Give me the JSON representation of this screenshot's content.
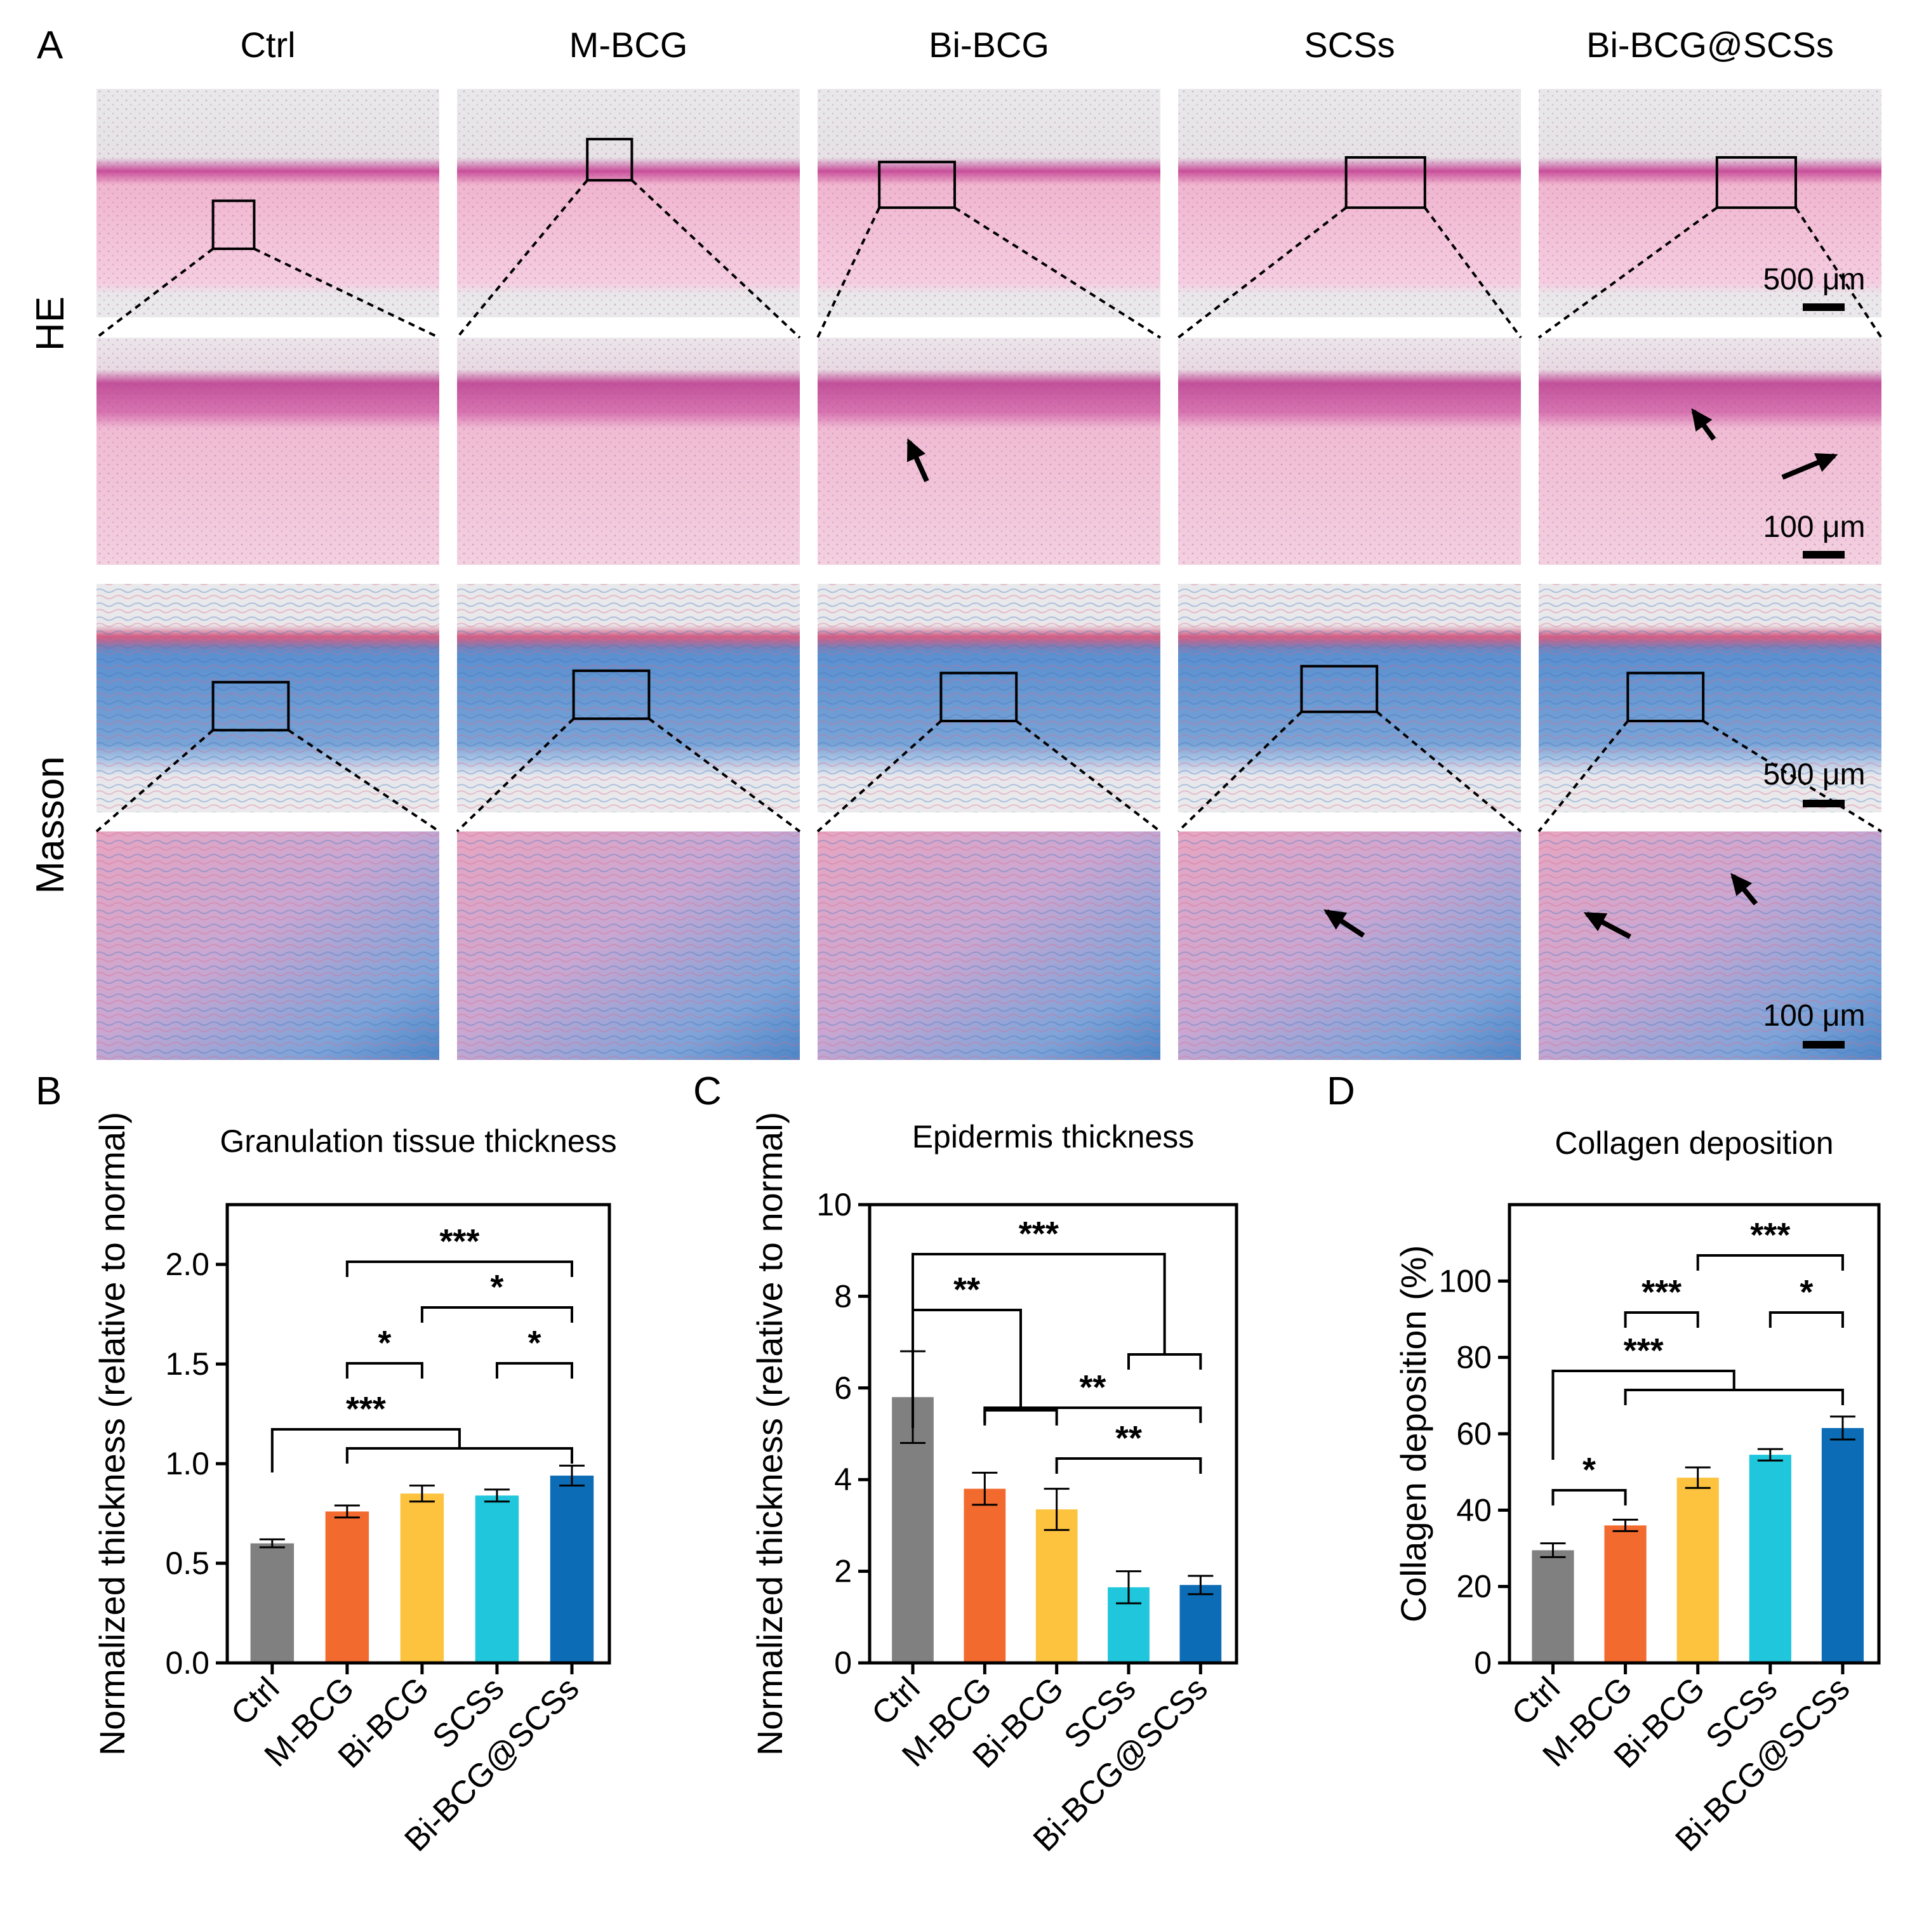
{
  "panel_a": {
    "letter": "A",
    "groups": [
      "Ctrl",
      "M-BCG",
      "Bi-BCG",
      "SCSs",
      "Bi-BCG@SCSs"
    ],
    "row_labels": {
      "he": "HE",
      "masson": "Masson"
    },
    "scale_bars": {
      "low_mag": "500 μm",
      "high_mag": "100 μm"
    },
    "colors": {
      "he_tissue": "#f2b8cf",
      "he_epidermis": "#c94f9a",
      "masson_collagen": "#4f86c6",
      "masson_muscle": "#d86a8c"
    }
  },
  "chart_data": [
    {
      "letter": "B",
      "type": "bar",
      "title": "Granulation tissue thickness",
      "ylabel": "Normalized thickness (relative to normal)",
      "categories": [
        "Ctrl",
        "M-BCG",
        "Bi-BCG",
        "SCSs",
        "Bi-BCG@SCSs"
      ],
      "values": [
        0.6,
        0.76,
        0.85,
        0.84,
        0.94
      ],
      "errors": [
        0.02,
        0.03,
        0.04,
        0.03,
        0.05
      ],
      "colors": [
        "#808080",
        "#f26a2e",
        "#fdc33e",
        "#1fc6dc",
        "#0c6db6"
      ],
      "ylim": [
        0,
        2.3
      ],
      "yticks": [
        "0.0",
        "0.5",
        "1.0",
        "1.5",
        "2.0"
      ],
      "significance": [
        {
          "label": "***",
          "from": 1,
          "to": 4
        },
        {
          "label": "*",
          "from": 2,
          "to": 4
        },
        {
          "label": "*",
          "from": 1,
          "to": 2
        },
        {
          "label": "*",
          "from": 3,
          "to": 4
        },
        {
          "label": "***",
          "from": 0,
          "to": [
            1,
            4
          ]
        }
      ]
    },
    {
      "letter": "C",
      "type": "bar",
      "title": "Epidermis thickness",
      "ylabel": "Normalized thickness (relative to normal)",
      "categories": [
        "Ctrl",
        "M-BCG",
        "Bi-BCG",
        "SCSs",
        "Bi-BCG@SCSs"
      ],
      "values": [
        5.8,
        3.8,
        3.35,
        1.65,
        1.7
      ],
      "errors": [
        1.0,
        0.35,
        0.45,
        0.35,
        0.2
      ],
      "colors": [
        "#808080",
        "#f26a2e",
        "#fdc33e",
        "#1fc6dc",
        "#0c6db6"
      ],
      "ylim": [
        0,
        10
      ],
      "yticks": [
        "0",
        "2",
        "4",
        "6",
        "8",
        "10"
      ],
      "significance": [
        {
          "label": "***",
          "from": 0,
          "to": [
            3,
            4
          ]
        },
        {
          "label": "**",
          "from": 0,
          "to": [
            1,
            2
          ]
        },
        {
          "label": "**",
          "from": 1,
          "to": 4
        },
        {
          "label": "**",
          "from": 2,
          "to": 4
        }
      ]
    },
    {
      "letter": "D",
      "type": "bar",
      "title": "Collagen deposition",
      "ylabel": "Collagen deposition (%)",
      "categories": [
        "Ctrl",
        "M-BCG",
        "Bi-BCG",
        "SCSs",
        "Bi-BCG@SCSs"
      ],
      "values": [
        29.5,
        36,
        48.5,
        54.5,
        61.5
      ],
      "errors": [
        1.8,
        1.5,
        2.7,
        1.5,
        3.0
      ],
      "colors": [
        "#808080",
        "#f26a2e",
        "#fdc33e",
        "#1fc6dc",
        "#0c6db6"
      ],
      "ylim": [
        0,
        120
      ],
      "yticks": [
        "0",
        "20",
        "40",
        "60",
        "80",
        "100"
      ],
      "significance": [
        {
          "label": "***",
          "from": 2,
          "to": 4
        },
        {
          "label": "***",
          "from": 1,
          "to": 2
        },
        {
          "label": "*",
          "from": 3,
          "to": 4
        },
        {
          "label": "***",
          "from": 0,
          "to": [
            1,
            4
          ]
        },
        {
          "label": "*",
          "from": 0,
          "to": 1
        }
      ]
    }
  ]
}
